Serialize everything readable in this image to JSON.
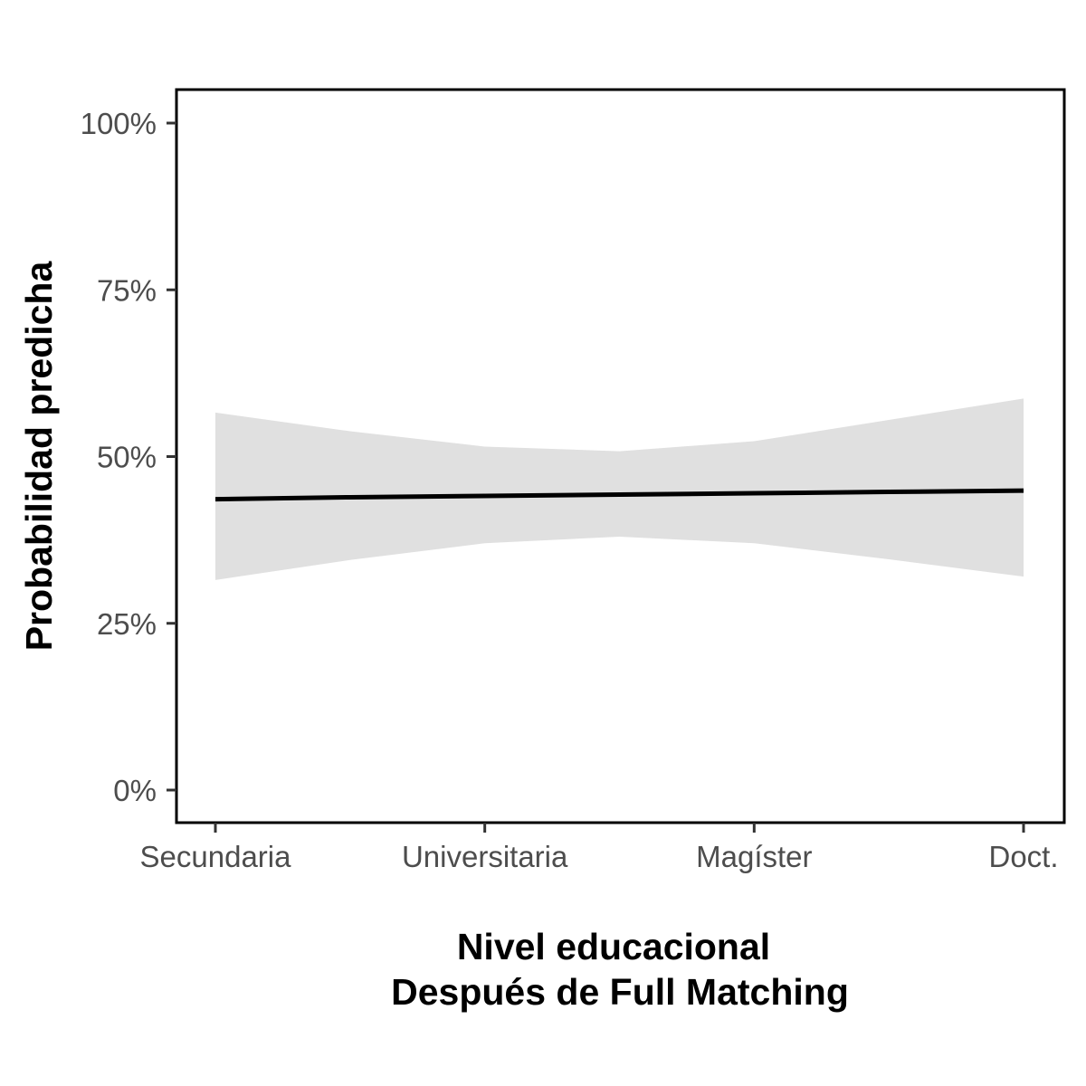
{
  "chart_data": {
    "type": "line",
    "xlabel": "Nivel educacional",
    "xlabel_line2": "Después de Full Matching",
    "ylabel": "Probabilidad predicha",
    "x_position_range": [
      1,
      4
    ],
    "x_ticks": [
      {
        "value": 1,
        "label": "Secundaria"
      },
      {
        "value": 2,
        "label": "Universitaria"
      },
      {
        "value": 3,
        "label": "Magíster"
      },
      {
        "value": 4,
        "label": "Doct."
      }
    ],
    "ylim": [
      0,
      1
    ],
    "y_ticks": [
      {
        "value": 0,
        "label": "0%"
      },
      {
        "value": 0.25,
        "label": "25%"
      },
      {
        "value": 0.5,
        "label": "50%"
      },
      {
        "value": 0.75,
        "label": "75%"
      },
      {
        "value": 1,
        "label": "100%"
      }
    ],
    "grid": false,
    "series": [
      {
        "x": [
          1,
          1.5,
          2,
          2.5,
          3,
          3.5,
          4
        ],
        "y": [
          0.436,
          0.439,
          0.441,
          0.443,
          0.445,
          0.447,
          0.449
        ],
        "ci_lower": [
          0.315,
          0.345,
          0.37,
          0.38,
          0.37,
          0.346,
          0.32
        ],
        "ci_upper": [
          0.566,
          0.538,
          0.515,
          0.508,
          0.523,
          0.555,
          0.587
        ],
        "line_color": "#000000",
        "band_color": "#e0e0e0"
      }
    ]
  }
}
